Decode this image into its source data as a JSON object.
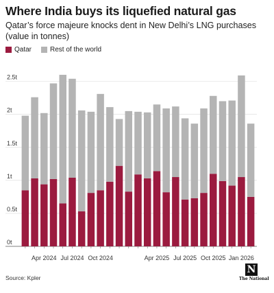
{
  "header": {
    "title": "Where India buys its liquefied natural gas",
    "subtitle": "Qatar’s force majeure knocks dent in New Delhi’s LNG purchases (value in tonnes)"
  },
  "legend": [
    {
      "label": "Qatar",
      "color": "#9b1b3f"
    },
    {
      "label": "Rest of the world",
      "color": "#b4b4b4"
    }
  ],
  "footer": {
    "source": "Source: Kpler",
    "logo_letter": "N",
    "logo_name": "The National"
  },
  "chart_data": {
    "type": "bar",
    "stacked": true,
    "title": "Where India buys its liquefied natural gas",
    "subtitle": "Qatar’s force majeure knocks dent in New Delhi’s LNG purchases (value in tonnes)",
    "xlabel": "",
    "ylabel": "",
    "ylim": [
      0,
      2.6
    ],
    "y_ticks": [
      0,
      0.5,
      1,
      1.5,
      2,
      2.5
    ],
    "y_tick_labels": [
      "0t",
      "0.5t",
      "1t",
      "1.5t",
      "2t",
      "2.5t"
    ],
    "grid": true,
    "legend_position": "top-left",
    "x_tick_labels": [
      {
        "index": 2,
        "label": "Apr 2024"
      },
      {
        "index": 5,
        "label": "Jul 2024"
      },
      {
        "index": 8,
        "label": "Oct 2024"
      },
      {
        "index": 14,
        "label": "Apr 2025"
      },
      {
        "index": 17,
        "label": "Jul 2025"
      },
      {
        "index": 20,
        "label": "Oct 2025"
      },
      {
        "index": 23,
        "label": "Jan 2026"
      }
    ],
    "series": [
      {
        "name": "Qatar",
        "color": "#9b1b3f",
        "values": [
          0.85,
          1.03,
          0.94,
          1.02,
          0.65,
          1.04,
          0.53,
          0.81,
          0.85,
          0.98,
          1.22,
          0.83,
          1.09,
          1.03,
          1.14,
          0.82,
          1.05,
          0.71,
          0.73,
          0.81,
          1.1,
          0.99,
          0.92,
          1.05,
          0.75
        ]
      },
      {
        "name": "Rest of the world",
        "color": "#b4b4b4",
        "values": [
          1.13,
          1.23,
          1.08,
          1.45,
          1.95,
          1.5,
          1.53,
          1.23,
          1.46,
          1.13,
          0.71,
          1.22,
          0.95,
          1.0,
          1.01,
          1.27,
          1.07,
          1.23,
          1.13,
          1.28,
          1.18,
          1.21,
          1.29,
          1.54,
          1.11
        ]
      }
    ]
  }
}
